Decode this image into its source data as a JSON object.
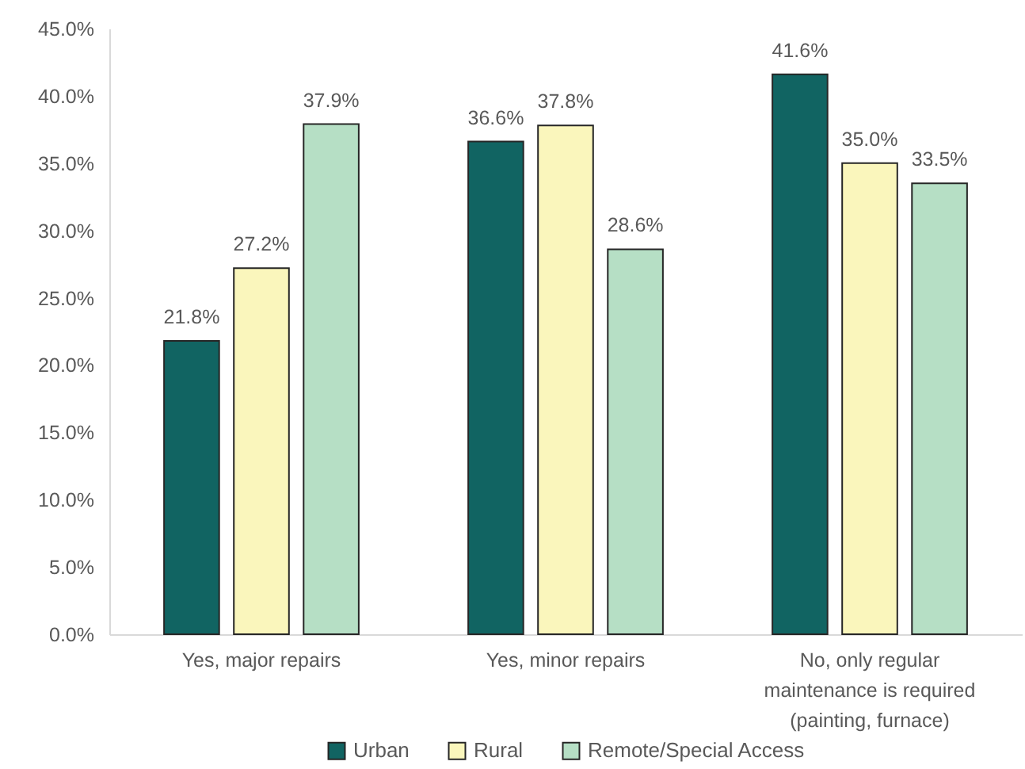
{
  "chart_data": {
    "type": "bar",
    "categories": [
      "Yes, major repairs",
      "Yes, minor repairs",
      "No, only regular maintenance is required (painting, furnace)"
    ],
    "series": [
      {
        "name": "Urban",
        "color": "#116462",
        "values": [
          21.8,
          36.6,
          41.6
        ],
        "value_labels": [
          "21.8%",
          "36.6%",
          "41.6%"
        ]
      },
      {
        "name": "Rural",
        "color": "#faf6bc",
        "values": [
          27.2,
          37.8,
          35.0
        ],
        "value_labels": [
          "27.2%",
          "37.8%",
          "35.0%"
        ]
      },
      {
        "name": "Remote/Special Access",
        "color": "#b6dfc5",
        "values": [
          37.9,
          28.6,
          33.5
        ],
        "value_labels": [
          "37.9%",
          "28.6%",
          "33.5%"
        ]
      }
    ],
    "ylim": [
      0,
      45
    ],
    "yticks": [
      {
        "value": 0,
        "label": "0.0%"
      },
      {
        "value": 5,
        "label": "5.0%"
      },
      {
        "value": 10,
        "label": "10.0%"
      },
      {
        "value": 15,
        "label": "15.0%"
      },
      {
        "value": 20,
        "label": "20.0%"
      },
      {
        "value": 25,
        "label": "25.0%"
      },
      {
        "value": 30,
        "label": "30.0%"
      },
      {
        "value": 35,
        "label": "35.0%"
      },
      {
        "value": 40,
        "label": "40.0%"
      },
      {
        "value": 45,
        "label": "45.0%"
      }
    ],
    "grid": false,
    "legend": "bottom"
  }
}
